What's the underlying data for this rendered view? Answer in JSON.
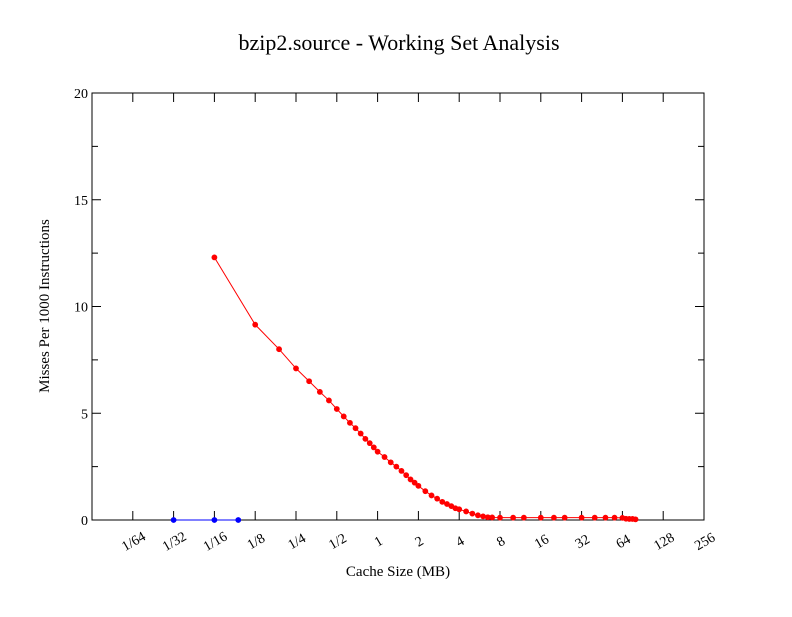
{
  "chart_data": {
    "type": "line",
    "title": "bzip2.source - Working Set Analysis",
    "xlabel": "Cache Size (MB)",
    "ylabel": "Misses Per 1000 Instructions",
    "x_scale": "log2",
    "xlim": [
      0.0078125,
      256
    ],
    "ylim": [
      0,
      20
    ],
    "x_ticks": [
      {
        "value": 0.015625,
        "label": "1/64"
      },
      {
        "value": 0.03125,
        "label": "1/32"
      },
      {
        "value": 0.0625,
        "label": "1/16"
      },
      {
        "value": 0.125,
        "label": "1/8"
      },
      {
        "value": 0.25,
        "label": "1/4"
      },
      {
        "value": 0.5,
        "label": "1/2"
      },
      {
        "value": 1,
        "label": "1"
      },
      {
        "value": 2,
        "label": "2"
      },
      {
        "value": 4,
        "label": "4"
      },
      {
        "value": 8,
        "label": "8"
      },
      {
        "value": 16,
        "label": "16"
      },
      {
        "value": 32,
        "label": "32"
      },
      {
        "value": 64,
        "label": "64"
      },
      {
        "value": 128,
        "label": "128"
      },
      {
        "value": 256,
        "label": "256"
      }
    ],
    "y_ticks": [
      {
        "value": 0,
        "label": "0"
      },
      {
        "value": 5,
        "label": "5"
      },
      {
        "value": 10,
        "label": "10"
      },
      {
        "value": 15,
        "label": "15"
      },
      {
        "value": 20,
        "label": "20"
      }
    ],
    "grid": false,
    "legend": "none",
    "series": [
      {
        "color": "#ff0000",
        "x": [
          0.0625,
          0.125,
          0.1875,
          0.25,
          0.3125,
          0.375,
          0.4375,
          0.5,
          0.5625,
          0.625,
          0.6875,
          0.75,
          0.8125,
          0.875,
          0.9375,
          1.0,
          1.125,
          1.25,
          1.375,
          1.5,
          1.625,
          1.75,
          1.875,
          2.0,
          2.25,
          2.5,
          2.75,
          3.0,
          3.25,
          3.5,
          3.75,
          4.0,
          4.5,
          5.0,
          5.5,
          6.0,
          6.5,
          7.0,
          8.0,
          10.0,
          12.0,
          16.0,
          20.0,
          24.0,
          32.0,
          40.0,
          48.0,
          56.0,
          64.0,
          68.0,
          72.0,
          76.0,
          80.0
        ],
        "y": [
          12.3,
          9.15,
          8.0,
          7.1,
          6.5,
          6.0,
          5.6,
          5.2,
          4.85,
          4.55,
          4.3,
          4.05,
          3.8,
          3.6,
          3.4,
          3.2,
          2.95,
          2.7,
          2.5,
          2.3,
          2.1,
          1.9,
          1.75,
          1.6,
          1.35,
          1.15,
          1.0,
          0.85,
          0.75,
          0.65,
          0.55,
          0.5,
          0.4,
          0.3,
          0.22,
          0.17,
          0.13,
          0.12,
          0.11,
          0.11,
          0.11,
          0.11,
          0.11,
          0.11,
          0.11,
          0.11,
          0.11,
          0.11,
          0.1,
          0.06,
          0.05,
          0.05,
          0.03
        ]
      },
      {
        "color": "#0000ff",
        "x": [
          0.03125,
          0.0625,
          0.09375
        ],
        "y": [
          0.0,
          0.0,
          0.0
        ]
      }
    ]
  }
}
